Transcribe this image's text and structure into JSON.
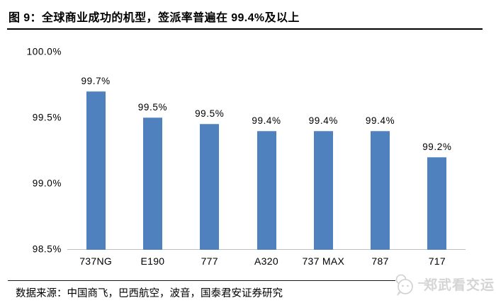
{
  "figure": {
    "title": "图 9：全球商业成功的机型，签派率普遍在 99.4%及以上",
    "source": "数据来源：中国商飞，巴西航空，波音，国泰君安证券研究",
    "watermark": "郑武看交运"
  },
  "chart_data": {
    "type": "bar",
    "title": "",
    "xlabel": "",
    "ylabel": "",
    "categories": [
      "737NG",
      "E190",
      "777",
      "A320",
      "737 MAX",
      "787",
      "717"
    ],
    "values": [
      99.7,
      99.5,
      99.5,
      99.4,
      99.4,
      99.4,
      99.2
    ],
    "values_precise": [
      99.7,
      99.5,
      99.45,
      99.4,
      99.4,
      99.4,
      99.2
    ],
    "data_labels": [
      "99.7%",
      "99.5%",
      "99.5%",
      "99.4%",
      "99.4%",
      "99.4%",
      "99.2%"
    ],
    "unit": "%",
    "ylim": [
      98.5,
      100.0
    ],
    "yticks": [
      {
        "value": 100.0,
        "label": "100.0%"
      },
      {
        "value": 99.5,
        "label": "99.5%"
      },
      {
        "value": 99.0,
        "label": "99.0%"
      },
      {
        "value": 98.5,
        "label": "98.5%"
      }
    ],
    "grid": false,
    "legend": false,
    "bar_color": "#4E81BD",
    "axis_line_color": "#BFBFBF",
    "label_color": "#000000"
  }
}
